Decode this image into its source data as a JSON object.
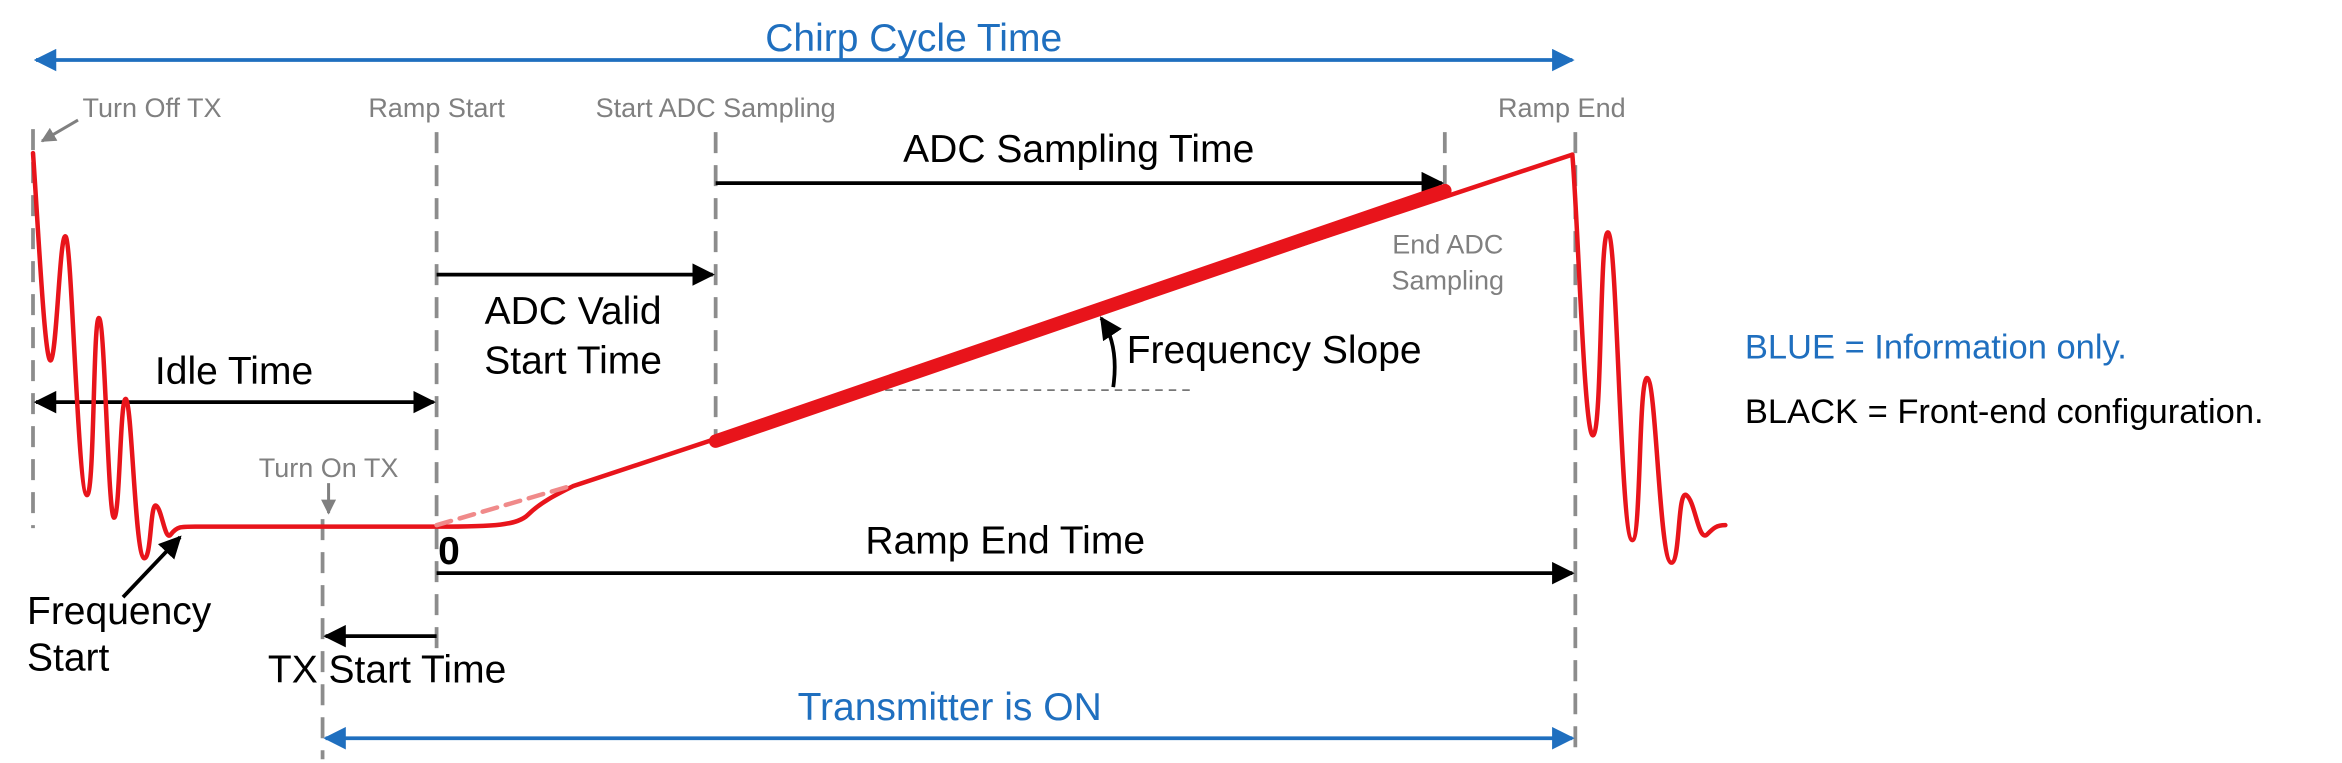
{
  "chirp_cycle_time": "Chirp Cycle Time",
  "events": {
    "turn_off_tx": "Turn Off TX",
    "ramp_start": "Ramp Start",
    "start_adc_sampling": "Start ADC Sampling",
    "ramp_end": "Ramp End",
    "end_adc_sampling": [
      "End ADC",
      "Sampling"
    ],
    "turn_on_tx": "Turn On TX"
  },
  "parameters": {
    "adc_sampling_time": "ADC Sampling Time",
    "adc_valid_start_time": [
      "ADC Valid",
      "Start Time"
    ],
    "idle_time": "Idle Time",
    "frequency_slope": "Frequency Slope",
    "ramp_end_time": "Ramp End Time",
    "zero": "0",
    "tx_start_time": "TX Start Time",
    "frequency_start": [
      "Frequency",
      "Start"
    ]
  },
  "transmitter_on": "Transmitter is ON",
  "legend": {
    "blue": "BLUE = Information only.",
    "black": "BLACK = Front-end configuration."
  }
}
